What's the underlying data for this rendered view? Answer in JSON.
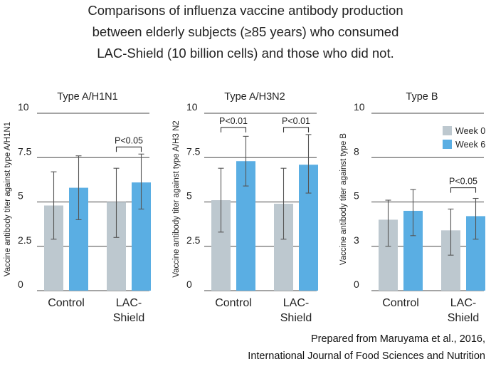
{
  "title_lines": [
    "Comparisons of influenza vaccine antibody production",
    "between elderly subjects (≥85 years) who consumed",
    "LAC-Shield (10 billion cells) and those who did not."
  ],
  "source_lines": [
    "Prepared from Maruyama et al., 2016,",
    "International Journal of Food Sciences and Nutrition"
  ],
  "colors": {
    "week0": "#bdc8cf",
    "week6": "#5aaee3",
    "gridline": "#6e6e6e",
    "errorbar": "#555555"
  },
  "chart_data": [
    {
      "type": "bar",
      "title": "Type A/H1N1",
      "ylabel": "Vaccine antibody titer against type A/H1N1",
      "ylim": [
        0,
        10
      ],
      "yticks": [
        0,
        2.5,
        5,
        7.5,
        10
      ],
      "ytick_labels": [
        "0",
        "2.5",
        "5",
        "7.5",
        "10"
      ],
      "categories": [
        [
          "Control"
        ],
        [
          "LAC-",
          "Shield"
        ]
      ],
      "series": [
        {
          "name": "Week 0",
          "values": [
            4.8,
            5.0
          ],
          "err_low": [
            2.9,
            3.0
          ],
          "err_high": [
            6.7,
            6.9
          ]
        },
        {
          "name": "Week 6",
          "values": [
            5.8,
            6.1
          ],
          "err_low": [
            4.0,
            4.6
          ],
          "err_high": [
            7.6,
            7.7
          ]
        }
      ],
      "annotations": [
        {
          "text": "P<0.05",
          "category": 1,
          "from_series": 0,
          "to_series": 1,
          "y": 8.1
        }
      ]
    },
    {
      "type": "bar",
      "title": "Type A/H3N2",
      "ylabel": "Vaccine antibody titer against type A/H3 N2",
      "ylim": [
        0,
        10
      ],
      "yticks": [
        0,
        2.5,
        5,
        7.5,
        10
      ],
      "ytick_labels": [
        "0",
        "2.5",
        "5",
        "7.5",
        "10"
      ],
      "categories": [
        [
          "Control"
        ],
        [
          "LAC-",
          "Shield"
        ]
      ],
      "series": [
        {
          "name": "Week 0",
          "values": [
            5.1,
            4.9
          ],
          "err_low": [
            3.3,
            2.9
          ],
          "err_high": [
            6.9,
            6.9
          ]
        },
        {
          "name": "Week 6",
          "values": [
            7.3,
            7.1
          ],
          "err_low": [
            5.9,
            5.5
          ],
          "err_high": [
            8.7,
            8.8
          ]
        }
      ],
      "annotations": [
        {
          "text": "P<0.01",
          "category": 0,
          "from_series": 0,
          "to_series": 1,
          "y": 9.2
        },
        {
          "text": "P<0.01",
          "category": 1,
          "from_series": 0,
          "to_series": 1,
          "y": 9.2
        }
      ]
    },
    {
      "type": "bar",
      "title": "Type B",
      "ylabel": "Vaccine antibody titer against type B",
      "ylim": [
        0,
        10
      ],
      "yticks": [
        0,
        2.5,
        5,
        7.5,
        10
      ],
      "ytick_labels": [
        "0",
        "3",
        "5",
        "8",
        "10"
      ],
      "categories": [
        [
          "Control"
        ],
        [
          "LAC-",
          "Shield"
        ]
      ],
      "series": [
        {
          "name": "Week 0",
          "values": [
            4.0,
            3.4
          ],
          "err_low": [
            2.5,
            2.0
          ],
          "err_high": [
            5.1,
            4.6
          ]
        },
        {
          "name": "Week 6",
          "values": [
            4.5,
            4.2
          ],
          "err_low": [
            3.1,
            2.9
          ],
          "err_high": [
            5.7,
            5.2
          ]
        }
      ],
      "legend": {
        "placement": "top-right",
        "entries": [
          "Week 0",
          "Week 6"
        ]
      },
      "annotations": [
        {
          "text": "P<0.05",
          "category": 1,
          "from_series": 0,
          "to_series": 1,
          "y": 5.8
        }
      ]
    }
  ]
}
